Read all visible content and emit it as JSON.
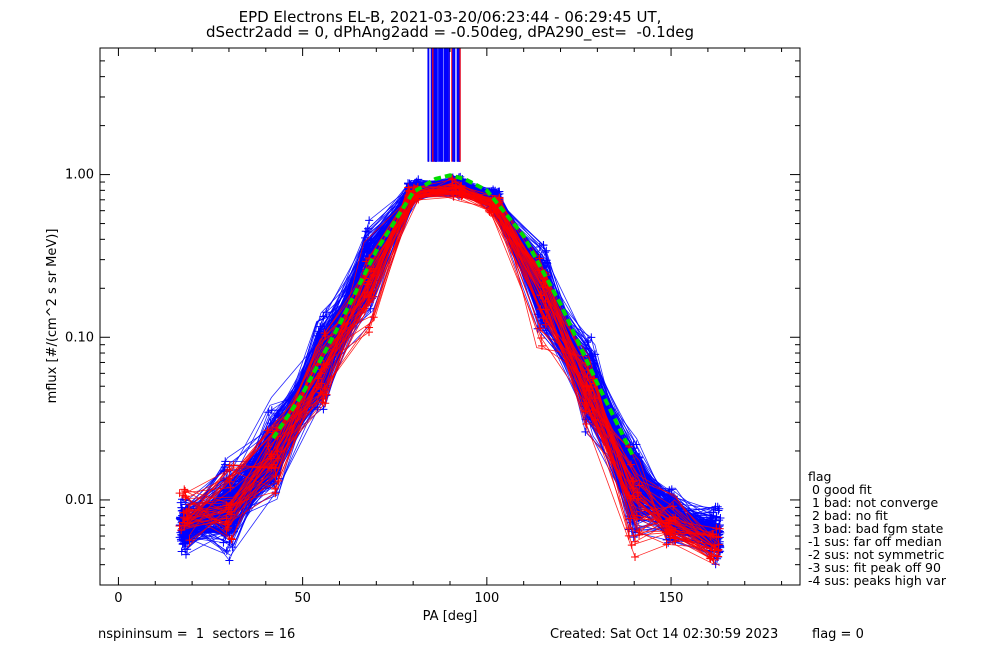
{
  "header": {
    "title": "EPD Electrons EL-B, 2021-03-20/06:23:44 - 06:29:45 UT,",
    "subtitle": "dSectr2add = 0, dPhAng2add = -0.50deg, dPA290_est=  -0.1deg"
  },
  "footer": {
    "left": "nspininsum =  1  sectors = 16",
    "created": "Created: Sat Oct 14 02:30:59 2023",
    "flag": "flag = 0"
  },
  "legend": {
    "title": "flag",
    "items": [
      " 0 good fit",
      " 1 bad: not converge",
      " 2 bad: no fit",
      " 3 bad: bad fgm state",
      "-1 sus: far off median",
      "-2 sus: not symmetric",
      "-3 sus: fit peak off 90",
      "-4 sus: peaks high var"
    ]
  },
  "chart_data": {
    "type": "line",
    "xlabel": "PA [deg]",
    "ylabel": "mflux [#/(cm^2 s sr MeV)]",
    "xlim": [
      -5,
      185
    ],
    "ylim": [
      0.003,
      6.0
    ],
    "yscale": "log",
    "xticks": [
      0,
      50,
      100,
      150
    ],
    "xtick_labels": [
      "0",
      "50",
      "100",
      "150"
    ],
    "yticks": [
      0.01,
      0.1,
      1.0
    ],
    "ytick_labels": [
      "0.01",
      "0.10",
      "1.00"
    ],
    "grid": false,
    "colors": {
      "blue": "#0000ff",
      "red": "#ff0000",
      "green": "#00dd00"
    },
    "series": [
      {
        "color": "blue",
        "style": "line+plus",
        "approx_num_curves": 220,
        "pa": [
          18,
          30,
          42,
          55,
          68,
          80,
          92,
          102,
          115,
          128,
          140,
          150,
          162
        ],
        "median_flux": [
          0.007,
          0.009,
          0.02,
          0.07,
          0.25,
          0.8,
          0.85,
          0.7,
          0.2,
          0.05,
          0.012,
          0.008,
          0.006
        ]
      },
      {
        "color": "red",
        "style": "line+plus",
        "approx_num_curves": 40,
        "pa": [
          18,
          30,
          42,
          55,
          68,
          80,
          92,
          102,
          115,
          128,
          140,
          150,
          162
        ],
        "median_flux": [
          0.008,
          0.01,
          0.018,
          0.06,
          0.22,
          0.75,
          0.8,
          0.65,
          0.18,
          0.045,
          0.01,
          0.007,
          0.005
        ]
      },
      {
        "color": "green",
        "style": "dashed-fit",
        "pa": [
          42,
          50,
          60,
          70,
          80,
          86,
          90,
          94,
          100,
          110,
          120,
          130,
          140
        ],
        "flux": [
          0.024,
          0.045,
          0.12,
          0.34,
          0.78,
          0.94,
          0.99,
          0.94,
          0.8,
          0.42,
          0.16,
          0.052,
          0.018
        ]
      }
    ],
    "spike": {
      "pa_min": 84,
      "pa_max": 93,
      "flux_min": 1.2
    }
  }
}
